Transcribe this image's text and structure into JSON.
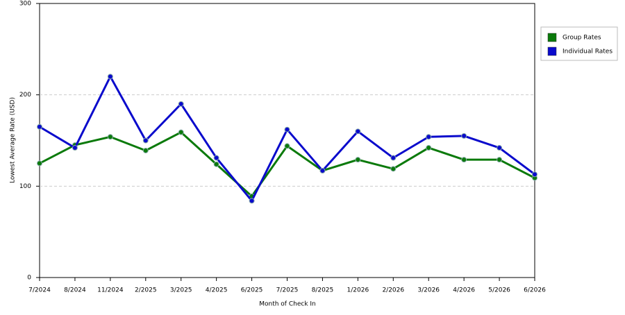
{
  "chart_data": {
    "type": "line",
    "x_label": "Month of Check In",
    "y_label": "Lowest Average Rate (USD)",
    "categories": [
      "7/2024",
      "8/2024",
      "11/2024",
      "2/2025",
      "3/2025",
      "4/2025",
      "6/2025",
      "7/2025",
      "8/2025",
      "1/2026",
      "2/2026",
      "3/2026",
      "4/2026",
      "5/2026",
      "6/2026"
    ],
    "series": [
      {
        "name": "Group Rates",
        "color": "#0b7a0b",
        "values": [
          125,
          145,
          154,
          139,
          159,
          124,
          89,
          144,
          117,
          129,
          119,
          142,
          129,
          129,
          109
        ]
      },
      {
        "name": "Individual Rates",
        "color": "#0a0acc",
        "values": [
          165,
          142,
          220,
          150,
          190,
          131,
          84,
          162,
          117,
          160,
          131,
          154,
          155,
          142,
          113
        ]
      }
    ],
    "ylim": [
      0,
      300
    ],
    "yticks": [
      0,
      100,
      200,
      300
    ],
    "grid": true,
    "legend": "right"
  }
}
